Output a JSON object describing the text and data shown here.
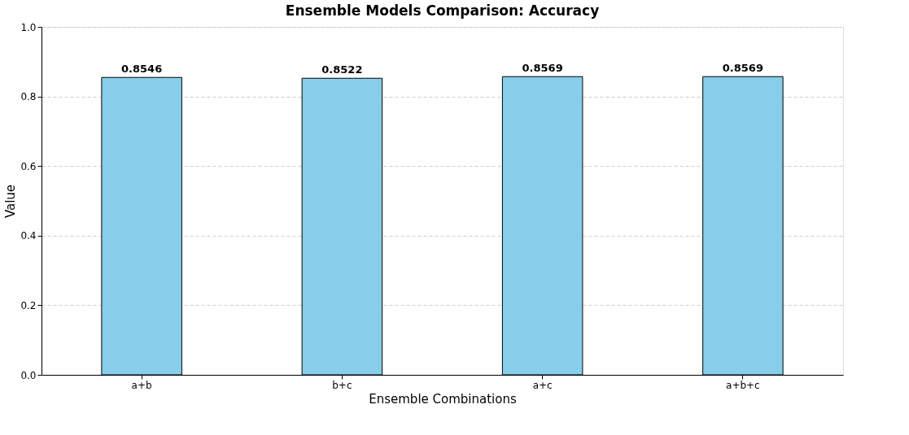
{
  "chart_data": {
    "type": "bar",
    "title": "Ensemble Models Comparison: Accuracy",
    "xlabel": "Ensemble Combinations",
    "ylabel": "Value",
    "categories": [
      "a+b",
      "b+c",
      "a+c",
      "a+b+c"
    ],
    "values": [
      0.8546,
      0.8522,
      0.8569,
      0.8569
    ],
    "color": "#87ceeb",
    "ylim": [
      0,
      1.0
    ],
    "yticks": [
      {
        "value": 0,
        "label": "0.0"
      },
      {
        "value": 0.2,
        "label": "0.2"
      },
      {
        "value": 0.4,
        "label": "0.4"
      },
      {
        "value": 0.6,
        "label": "0.6"
      },
      {
        "value": 0.8,
        "label": "0.8"
      },
      {
        "value": 1.0,
        "label": "1.0"
      }
    ],
    "grid": "y",
    "data_labels": true
  }
}
